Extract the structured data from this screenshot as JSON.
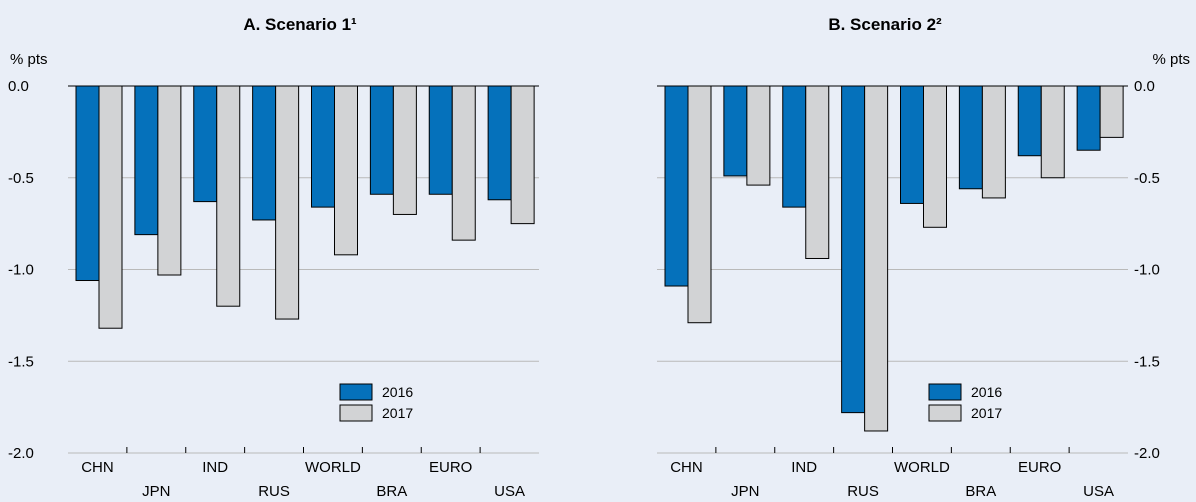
{
  "colors": {
    "series_2016": "#0571bb",
    "series_2017": "#d2d3d5",
    "background": "#e9eef7"
  },
  "chart_data": [
    {
      "type": "bar",
      "title": "A. Scenario 1¹",
      "ylabel": "% pts",
      "ylim": [
        -2.0,
        0.0
      ],
      "yticks": [
        "0.0",
        "-0.5",
        "-1.0",
        "-1.5",
        "-2.0"
      ],
      "grid": true,
      "legend": "bottom-right",
      "categories": [
        "CHN",
        "JPN",
        "IND",
        "RUS",
        "WORLD",
        "BRA",
        "EURO",
        "USA"
      ],
      "series": [
        {
          "name": "2016",
          "values": [
            -1.06,
            -0.81,
            -0.63,
            -0.73,
            -0.66,
            -0.59,
            -0.59,
            -0.62
          ]
        },
        {
          "name": "2017",
          "values": [
            -1.32,
            -1.03,
            -1.2,
            -1.27,
            -0.92,
            -0.7,
            -0.84,
            -0.75
          ]
        }
      ]
    },
    {
      "type": "bar",
      "title": "B. Scenario 2²",
      "ylabel": "% pts",
      "ylim": [
        -2.0,
        0.0
      ],
      "yticks": [
        "0.0",
        "-0.5",
        "-1.0",
        "-1.5",
        "-2.0"
      ],
      "grid": true,
      "legend": "bottom-right",
      "categories": [
        "CHN",
        "JPN",
        "IND",
        "RUS",
        "WORLD",
        "BRA",
        "EURO",
        "USA"
      ],
      "series": [
        {
          "name": "2016",
          "values": [
            -1.09,
            -0.49,
            -0.66,
            -1.78,
            -0.64,
            -0.56,
            -0.38,
            -0.35
          ]
        },
        {
          "name": "2017",
          "values": [
            -1.29,
            -0.54,
            -0.94,
            -1.88,
            -0.77,
            -0.61,
            -0.5,
            -0.28
          ]
        }
      ]
    }
  ]
}
